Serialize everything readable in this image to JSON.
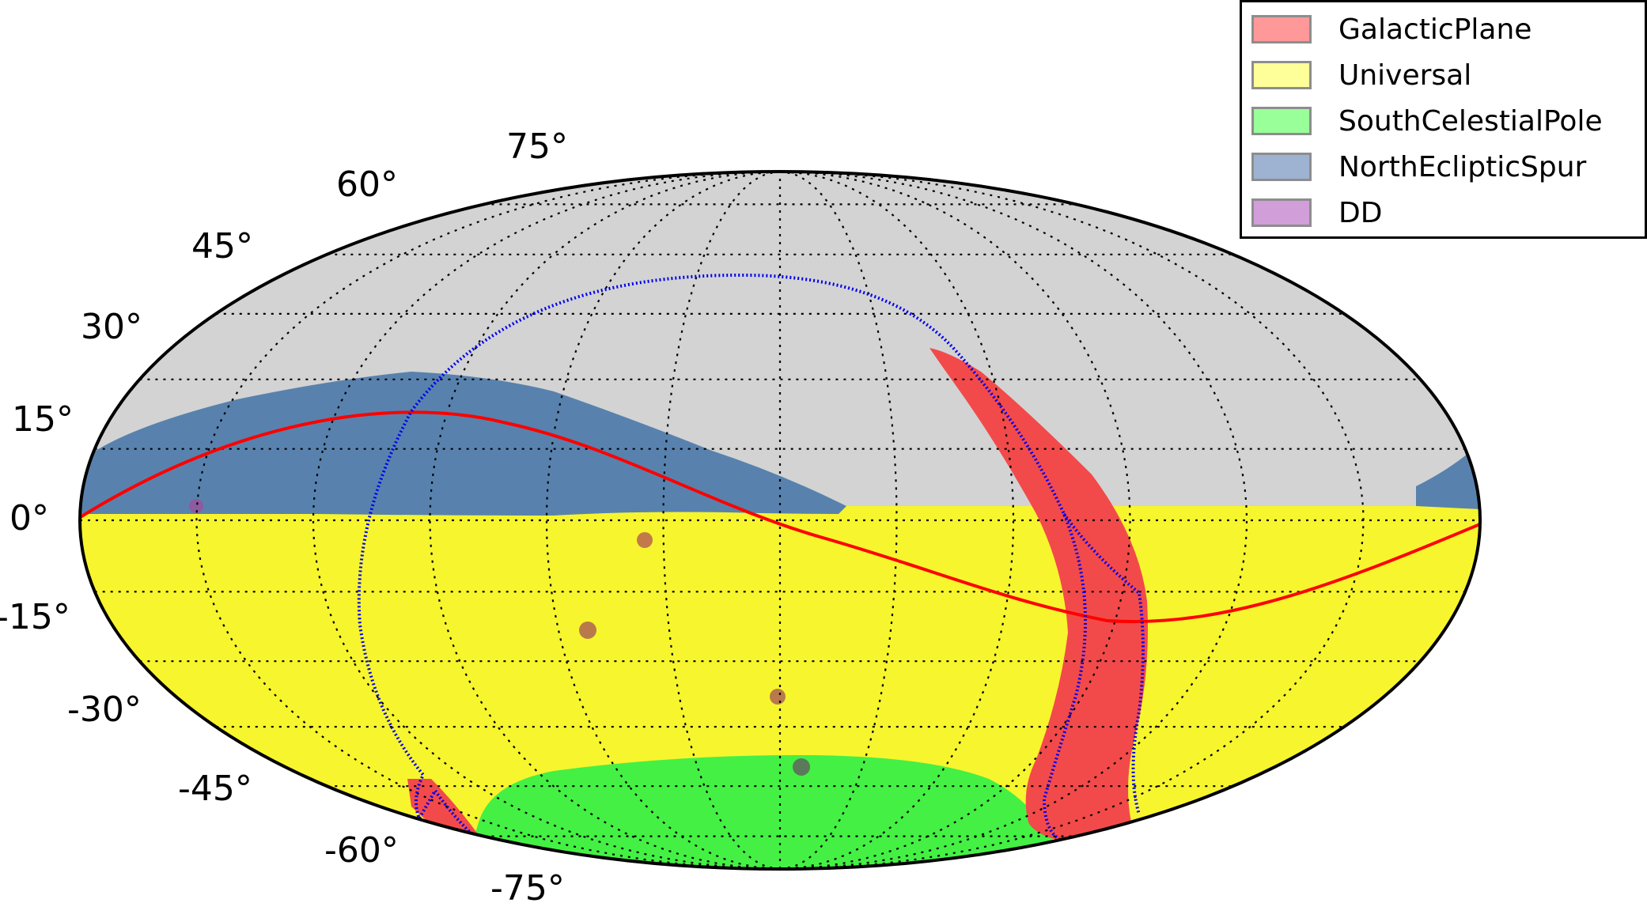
{
  "chart_data": {
    "type": "scatter",
    "projection": "mollweide",
    "title": "",
    "xlabel": "",
    "ylabel": "",
    "latitude_ticks": [
      "75°",
      "60°",
      "45°",
      "30°",
      "15°",
      "0°",
      "-15°",
      "-30°",
      "-45°",
      "-60°",
      "-75°"
    ],
    "grid": true,
    "background_color": "#d3d3d3",
    "legend": {
      "placement": "top-right",
      "entries": [
        {
          "label": "GalacticPlane",
          "color": "#ff6b6b"
        },
        {
          "label": "Universal",
          "color": "#ffff66"
        },
        {
          "label": "SouthCelestialPole",
          "color": "#66ff66"
        },
        {
          "label": "NorthEclipticSpur",
          "color": "#6b8fc2"
        },
        {
          "label": "DD",
          "color": "#b55cc2"
        }
      ]
    },
    "lines": [
      {
        "description": "ecliptic",
        "color": "#ff0000"
      },
      {
        "description": "galactic plane",
        "color": "#0000ff"
      }
    ],
    "dd_fields": [
      {
        "ra_deg": 150,
        "dec_deg": 2
      },
      {
        "ra_deg": 35,
        "dec_deg": -5
      },
      {
        "ra_deg": 53,
        "dec_deg": -28
      },
      {
        "ra_deg": 0,
        "dec_deg": -44
      },
      {
        "ra_deg": -9,
        "dec_deg": -64
      }
    ]
  }
}
